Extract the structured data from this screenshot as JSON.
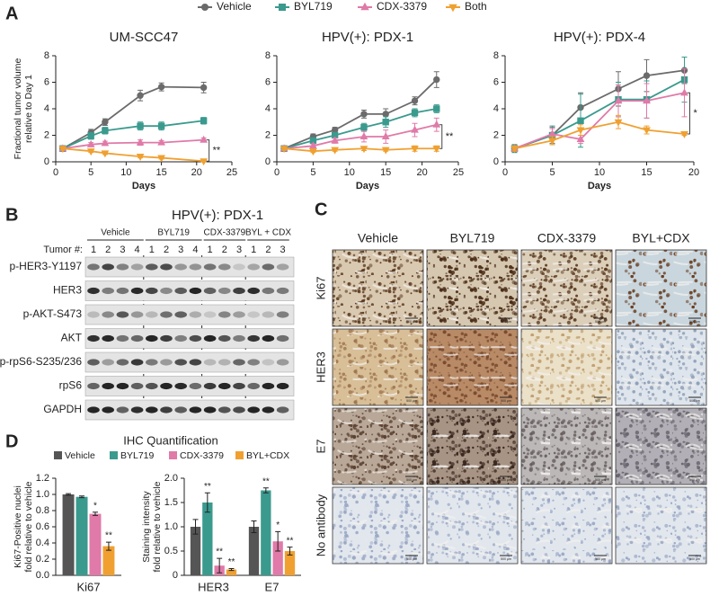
{
  "panel_labels": [
    "A",
    "B",
    "C",
    "D"
  ],
  "chart_data": [
    {
      "type": "line",
      "title": "UM-SCC47",
      "xlabel": "Days",
      "ylabel": [
        "Fractional tumor volume",
        "relative to Day 1"
      ],
      "x": [
        1,
        5,
        7,
        12,
        15,
        21
      ],
      "xlim": [
        0,
        25
      ],
      "xticks": [
        0,
        5,
        10,
        15,
        20,
        25
      ],
      "ylim": [
        0,
        8
      ],
      "yticks": [
        0,
        2,
        4,
        6,
        8
      ],
      "annotation": "**",
      "series": [
        {
          "name": "Vehicle",
          "color": "#6b6b6b",
          "marker": "circle",
          "values": [
            1.0,
            2.2,
            3.0,
            5.0,
            5.65,
            5.6
          ],
          "errors": [
            0.1,
            0.25,
            0.25,
            0.4,
            0.3,
            0.4
          ]
        },
        {
          "name": "BYL719",
          "color": "#3a9a8e",
          "marker": "square",
          "values": [
            1.0,
            1.95,
            2.35,
            2.7,
            2.7,
            3.1
          ],
          "errors": [
            0.1,
            0.25,
            0.25,
            0.3,
            0.3,
            0.25
          ]
        },
        {
          "name": "CDX-3379",
          "color": "#e07aa8",
          "marker": "triangle-up",
          "values": [
            1.0,
            1.3,
            1.4,
            1.45,
            1.45,
            1.65
          ],
          "errors": [
            0.1,
            0.15,
            0.15,
            0.2,
            0.15,
            0.15
          ]
        },
        {
          "name": "Both",
          "color": "#f0a030",
          "marker": "triangle-down",
          "values": [
            1.0,
            0.8,
            0.65,
            0.4,
            0.3,
            0.05
          ],
          "errors": [
            0.05,
            0.1,
            0.1,
            0.1,
            0.1,
            0.05
          ]
        }
      ]
    },
    {
      "type": "line",
      "title": "HPV(+):  PDX-1",
      "xlabel": "Days",
      "x": [
        1,
        5,
        8,
        12,
        15,
        19,
        22
      ],
      "xlim": [
        0,
        25
      ],
      "xticks": [
        0,
        5,
        10,
        15,
        20,
        25
      ],
      "ylim": [
        0,
        8
      ],
      "yticks": [
        0,
        2,
        4,
        6,
        8
      ],
      "annotation": "**",
      "series": [
        {
          "color": "#6b6b6b",
          "marker": "circle",
          "values": [
            1.0,
            1.9,
            2.4,
            3.6,
            3.6,
            4.6,
            6.2
          ],
          "errors": [
            0.1,
            0.2,
            0.2,
            0.3,
            0.4,
            0.3,
            0.6
          ]
        },
        {
          "color": "#3a9a8e",
          "marker": "square",
          "values": [
            1.0,
            1.6,
            2.0,
            2.6,
            3.0,
            3.7,
            4.0
          ],
          "errors": [
            0.1,
            0.2,
            0.2,
            0.3,
            0.4,
            0.3,
            0.3
          ]
        },
        {
          "color": "#e07aa8",
          "marker": "triangle-up",
          "values": [
            1.0,
            1.2,
            1.6,
            1.9,
            1.9,
            2.4,
            2.8
          ],
          "errors": [
            0.1,
            0.15,
            0.2,
            0.4,
            0.5,
            0.5,
            0.5
          ]
        },
        {
          "color": "#f0a030",
          "marker": "triangle-down",
          "values": [
            1.0,
            0.8,
            0.9,
            1.0,
            0.9,
            1.0,
            1.0
          ],
          "errors": [
            0.1,
            0.1,
            0.1,
            0.15,
            0.1,
            0.2,
            0.2
          ]
        }
      ]
    },
    {
      "type": "line",
      "title": "HPV(+):  PDX-4",
      "xlabel": "Days",
      "x": [
        1,
        5,
        8,
        12,
        15,
        19
      ],
      "xlim": [
        0,
        20
      ],
      "xticks": [
        0,
        5,
        10,
        15,
        20
      ],
      "ylim": [
        0,
        8
      ],
      "yticks": [
        0,
        2,
        4,
        6,
        8
      ],
      "annotation": "*",
      "series": [
        {
          "color": "#6b6b6b",
          "marker": "circle",
          "values": [
            1.0,
            2.0,
            4.1,
            5.5,
            6.5,
            6.9
          ],
          "errors": [
            0.3,
            0.6,
            1.1,
            1.3,
            1.2,
            1.0
          ]
        },
        {
          "color": "#3a9a8e",
          "marker": "square",
          "values": [
            1.0,
            2.0,
            3.1,
            4.7,
            4.7,
            6.2
          ],
          "errors": [
            0.3,
            0.7,
            2.0,
            1.3,
            1.4,
            1.7
          ]
        },
        {
          "color": "#e07aa8",
          "marker": "triangle-up",
          "values": [
            1.0,
            2.1,
            1.7,
            4.6,
            4.6,
            5.2
          ],
          "errors": [
            0.2,
            0.4,
            0.3,
            1.2,
            1.3,
            1.8
          ]
        },
        {
          "color": "#f0a030",
          "marker": "triangle-down",
          "values": [
            1.0,
            1.6,
            2.4,
            3.0,
            2.4,
            2.1
          ],
          "errors": [
            0.2,
            0.3,
            0.4,
            0.5,
            0.3,
            0.1
          ]
        }
      ]
    },
    {
      "type": "bar",
      "title": "IHC Quantification",
      "ylabel": [
        "Ki67-Positive nuclei",
        "fold relative to vehicle"
      ],
      "categories": [
        "Ki67"
      ],
      "ylim": [
        0,
        1.2
      ],
      "yticks": [
        {
          "value": 0,
          "label": "0.0"
        },
        0.2,
        0.4,
        0.6,
        0.8,
        {
          "value": 1,
          "label": "1.0"
        },
        1.2
      ],
      "series": [
        {
          "name": "Vehicle",
          "color": "#555555",
          "values": [
            1.0
          ],
          "errors": [
            0.01
          ],
          "significance": [
            null
          ]
        },
        {
          "name": "BYL719",
          "color": "#3a9a8e",
          "values": [
            0.97
          ],
          "errors": [
            0.01
          ],
          "significance": [
            null
          ]
        },
        {
          "name": "CDX-3379",
          "color": "#e07aa8",
          "values": [
            0.76
          ],
          "errors": [
            0.02
          ],
          "significance": [
            "*"
          ]
        },
        {
          "name": "BYL+CDX",
          "color": "#f0a030",
          "values": [
            0.36
          ],
          "errors": [
            0.05
          ],
          "significance": [
            "**"
          ]
        }
      ]
    },
    {
      "type": "bar",
      "ylabel": [
        "Staining intensity",
        "fold relative to vehicle"
      ],
      "categories": [
        "HER3",
        "E7"
      ],
      "ylim": [
        0,
        2
      ],
      "yticks": [
        0,
        0.5,
        {
          "value": 1,
          "label": "1.0"
        },
        1.5,
        {
          "value": 2,
          "label": "2.0"
        }
      ],
      "series": [
        {
          "color": "#555555",
          "values": [
            1.0,
            1.0
          ],
          "errors": [
            0.15,
            0.12
          ],
          "significance": [
            null,
            null
          ]
        },
        {
          "color": "#3a9a8e",
          "values": [
            1.5,
            1.75
          ],
          "errors": [
            0.2,
            0.05
          ],
          "significance": [
            "**",
            "**"
          ]
        },
        {
          "color": "#e07aa8",
          "values": [
            0.2,
            0.7
          ],
          "errors": [
            0.15,
            0.2
          ],
          "significance": [
            "**",
            "*"
          ]
        },
        {
          "color": "#f0a030",
          "values": [
            0.12,
            0.5
          ],
          "errors": [
            0.02,
            0.08
          ],
          "significance": [
            "**",
            "**"
          ]
        }
      ]
    }
  ],
  "western_blot": {
    "title": "HPV(+):  PDX-1",
    "tumor_label": "Tumor #:",
    "groups": [
      {
        "label": "Vehicle",
        "lanes": [
          "1",
          "2",
          "3",
          "4"
        ]
      },
      {
        "label": "BYL719",
        "lanes": [
          "1",
          "2",
          "3",
          "4"
        ]
      },
      {
        "label": "CDX-3379",
        "lanes": [
          "1",
          "2",
          "3"
        ]
      },
      {
        "label": "BYL + CDX",
        "lanes": [
          "1",
          "2",
          "3"
        ]
      }
    ],
    "rows": [
      "p-HER3-Y1197",
      "HER3",
      "p-AKT-S473",
      "AKT",
      "p-rpS6-S235/236",
      "rpS6",
      "GAPDH"
    ]
  },
  "ihc": {
    "columns": [
      "Vehicle",
      "BYL719",
      "CDX-3379",
      "BYL+CDX"
    ],
    "rows": [
      "Ki67",
      "HER3",
      "E7",
      "No antibody"
    ],
    "scale_bar": "500 µm"
  }
}
